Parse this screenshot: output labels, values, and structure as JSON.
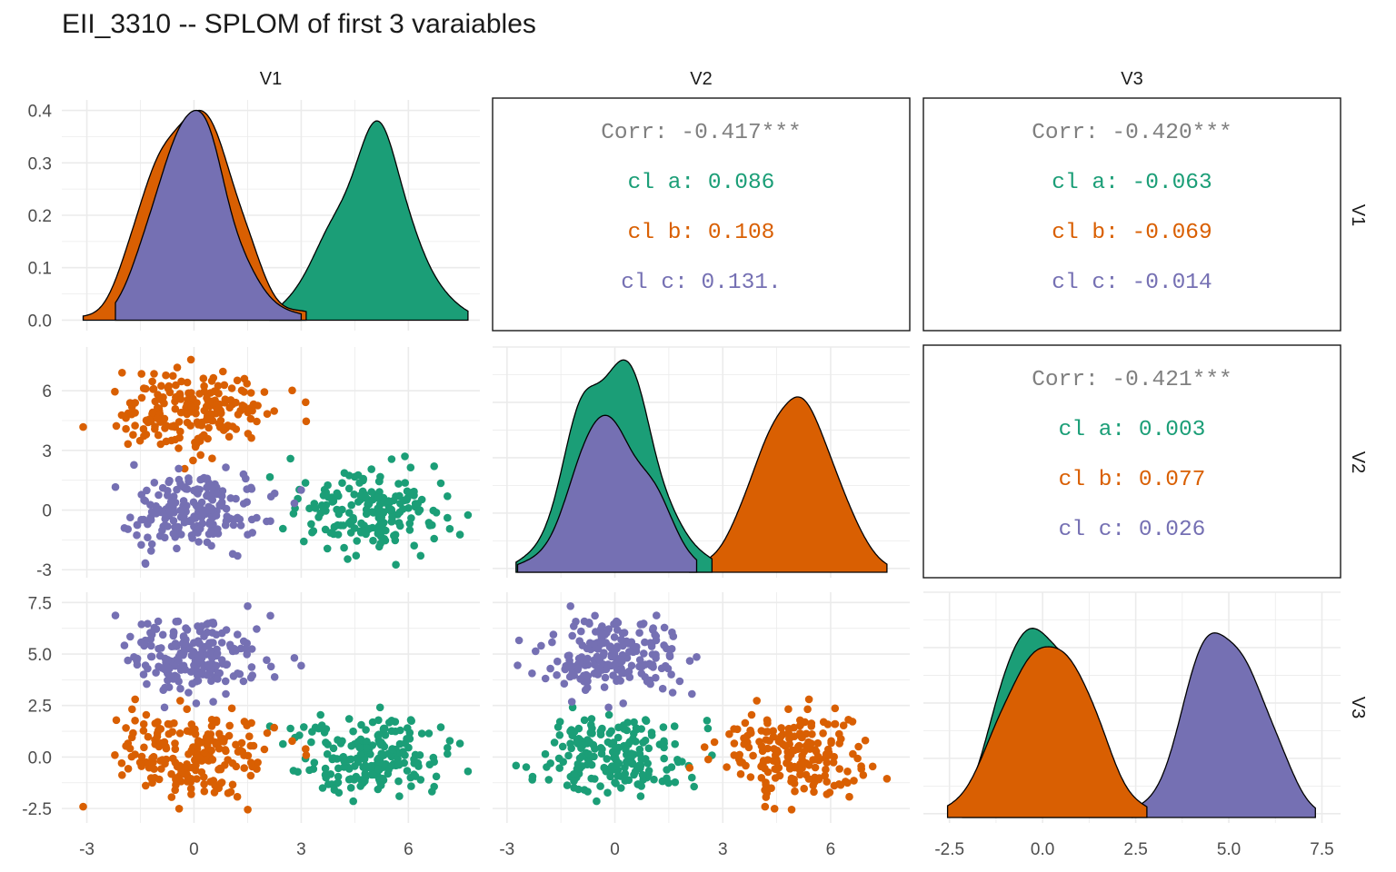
{
  "title": "EII_3310 -- SPLOM of first 3 varaiables",
  "colors": {
    "cl_a": "#1b9e77",
    "cl_b": "#d95f02",
    "cl_c": "#7570b3",
    "corr_total": "#7f7f7f",
    "grid": "#ebebeb",
    "frame": "#1a1a1a"
  },
  "chart_data": {
    "type": "scatter",
    "variables": [
      "V1",
      "V2",
      "V3"
    ],
    "groups": [
      "cl a",
      "cl b",
      "cl c"
    ],
    "axes": {
      "V1": {
        "range": [
          -3.7,
          8.0
        ],
        "ticks": [
          -3,
          0,
          3,
          6
        ],
        "tick_labels": [
          "-3",
          "0",
          "3",
          "6"
        ]
      },
      "V2": {
        "range": [
          -3.4,
          8.2
        ],
        "ticks": [
          -3,
          0,
          3,
          6
        ],
        "tick_labels": [
          "-3",
          "0",
          "3",
          "6"
        ]
      },
      "V3": {
        "range": [
          -3.2,
          8.0
        ],
        "ticks": [
          -2.5,
          0,
          2.5,
          5,
          7.5
        ],
        "tick_labels": [
          "-2.5",
          "0.0",
          "2.5",
          "5.0",
          "7.5"
        ]
      },
      "V1_density": {
        "range": [
          -0.02,
          0.42
        ],
        "ticks": [
          0,
          0.1,
          0.2,
          0.3,
          0.4
        ],
        "tick_labels": [
          "0.0",
          "0.1",
          "0.2",
          "0.3",
          "0.4"
        ]
      }
    },
    "group_means": {
      "cl a": {
        "V1": 5.0,
        "V2": 0.0,
        "V3": 0.0
      },
      "cl b": {
        "V1": 0.0,
        "V2": 5.0,
        "V3": 0.0
      },
      "cl c": {
        "V1": 0.0,
        "V2": 0.0,
        "V3": 5.0
      }
    },
    "group_sd": 1.0,
    "points_per_group": 200,
    "densities": {
      "V1": {
        "cl a": {
          "peak_x": 5.1,
          "peak_density": 0.38
        },
        "cl b": {
          "peak_x": -0.2,
          "peak_density": 0.4
        },
        "cl c": {
          "peak_x": 0.2,
          "peak_density": 0.4
        }
      },
      "V2": {
        "cl a": {
          "peak_x": -0.1,
          "peak_density": 0.46
        },
        "cl b": {
          "peak_x": 5.0,
          "peak_density": 0.38
        },
        "cl c": {
          "peak_x": 0.0,
          "peak_density": 0.34
        }
      },
      "V3": {
        "cl a": {
          "peak_x": -0.1,
          "peak_density": 0.41
        },
        "cl b": {
          "peak_x": -0.4,
          "peak_density": 0.37
        },
        "cl c": {
          "peak_x": 5.0,
          "peak_density": 0.4
        }
      }
    },
    "correlations": [
      {
        "pair": [
          "V2",
          "V1"
        ],
        "lines": [
          {
            "group": "total",
            "text": "Corr: -0.417***"
          },
          {
            "group": "cl a",
            "text": "cl a: 0.086"
          },
          {
            "group": "cl b",
            "text": "cl b: 0.108"
          },
          {
            "group": "cl c",
            "text": "cl c: 0.131."
          }
        ]
      },
      {
        "pair": [
          "V3",
          "V1"
        ],
        "lines": [
          {
            "group": "total",
            "text": "Corr: -0.420***"
          },
          {
            "group": "cl a",
            "text": "cl a: -0.063"
          },
          {
            "group": "cl b",
            "text": "cl b: -0.069"
          },
          {
            "group": "cl c",
            "text": "cl c: -0.014"
          }
        ]
      },
      {
        "pair": [
          "V3",
          "V2"
        ],
        "lines": [
          {
            "group": "total",
            "text": "Corr: -0.421***"
          },
          {
            "group": "cl a",
            "text": "cl a: 0.003"
          },
          {
            "group": "cl b",
            "text": "cl b: 0.077"
          },
          {
            "group": "cl c",
            "text": "cl c: 0.026"
          }
        ]
      }
    ]
  }
}
